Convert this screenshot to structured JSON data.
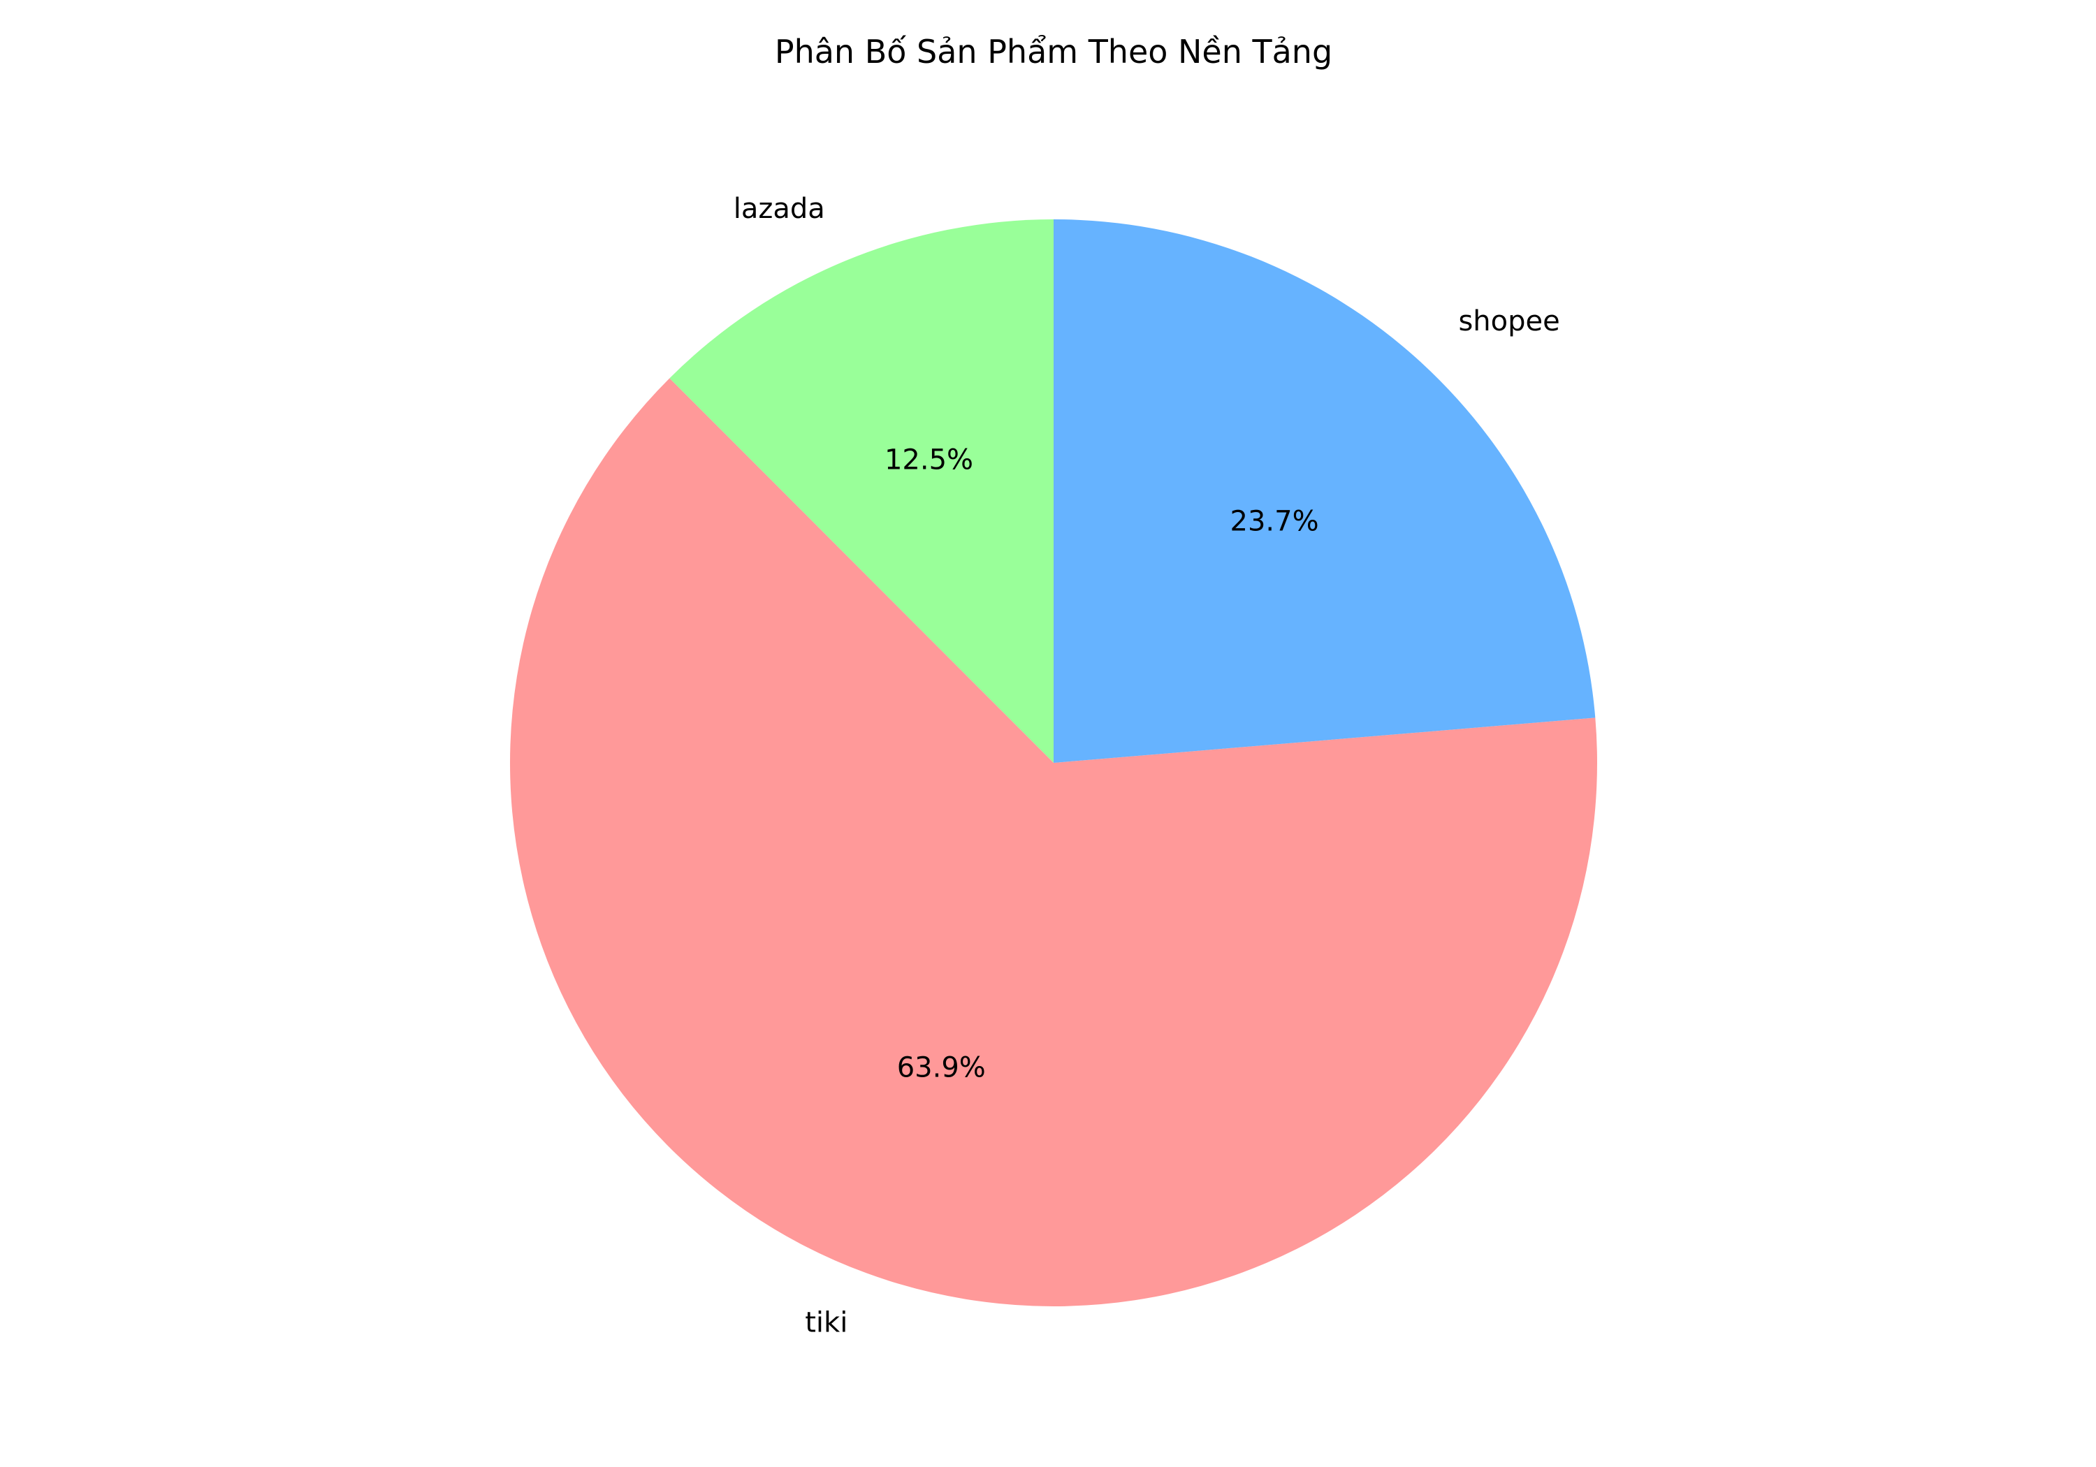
{
  "chart_data": {
    "type": "pie",
    "title": "Phân Bố Sản Phẩm Theo Nền Tảng",
    "start_angle_deg": 90,
    "direction": "counterclockwise",
    "slices": [
      {
        "label": "lazada",
        "value": 12.5,
        "pct_label": "12.5%",
        "color": "#99ff99"
      },
      {
        "label": "tiki",
        "value": 63.9,
        "pct_label": "63.9%",
        "color": "#ff9999"
      },
      {
        "label": "shopee",
        "value": 23.7,
        "pct_label": "23.7%",
        "color": "#66b3ff"
      }
    ],
    "legend": false,
    "grid": false
  }
}
